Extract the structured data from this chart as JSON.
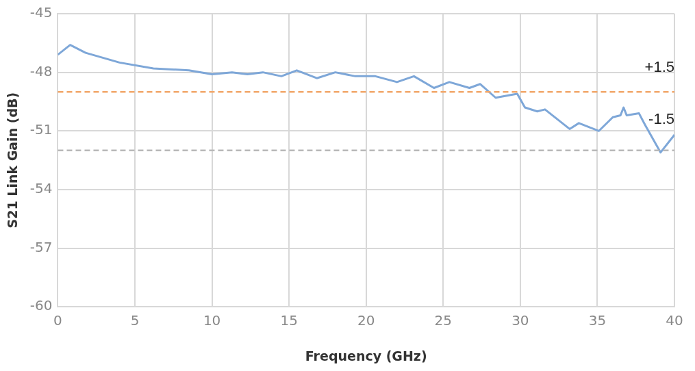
{
  "chart_data": {
    "type": "line",
    "xlabel": "Frequency (GHz)",
    "ylabel": "S21 Link Gain (dB)",
    "xlim": [
      0,
      40
    ],
    "xticks": [
      0,
      5,
      10,
      15,
      20,
      25,
      30,
      35,
      40
    ],
    "ylim": [
      -60,
      -45
    ],
    "yticks": [
      -60,
      -57,
      -54,
      -51,
      -48,
      -45
    ],
    "grid": true,
    "legend": false,
    "marker": "none",
    "line_style": "solid",
    "series": [
      {
        "color": "#7ea7d8",
        "x": [
          0,
          0.8,
          1.8,
          4,
          6.2,
          8.5,
          10,
          11.3,
          12.3,
          13.3,
          14.5,
          15.5,
          16.8,
          18,
          19.3,
          20.6,
          22,
          23.1,
          24.4,
          25.4,
          26.7,
          27.4,
          28.4,
          29.8,
          30.3,
          31.1,
          31.6,
          33.2,
          33.8,
          35.1,
          36,
          36.5,
          36.7,
          36.9,
          37.7,
          38.1,
          39.1,
          40
        ],
        "values": [
          -47.1,
          -46.6,
          -47.0,
          -47.5,
          -47.8,
          -47.9,
          -48.1,
          -48.0,
          -48.1,
          -48.0,
          -48.2,
          -47.9,
          -48.3,
          -48.0,
          -48.2,
          -48.2,
          -48.5,
          -48.2,
          -48.8,
          -48.5,
          -48.8,
          -48.6,
          -49.3,
          -49.1,
          -49.8,
          -50.0,
          -49.9,
          -50.9,
          -50.6,
          -51.0,
          -50.3,
          -50.2,
          -49.8,
          -50.2,
          -50.1,
          -50.7,
          -52.1,
          -51.2
        ]
      }
    ],
    "annotations": [
      "+1.5",
      "-1.5"
    ],
    "ref_lines": [
      {
        "axis": "y",
        "value": -49,
        "color": "#f2a76a",
        "line_style": "dashed"
      },
      {
        "axis": "y",
        "value": -52,
        "color": "#b8b8b8",
        "line_style": "dashed"
      }
    ]
  }
}
